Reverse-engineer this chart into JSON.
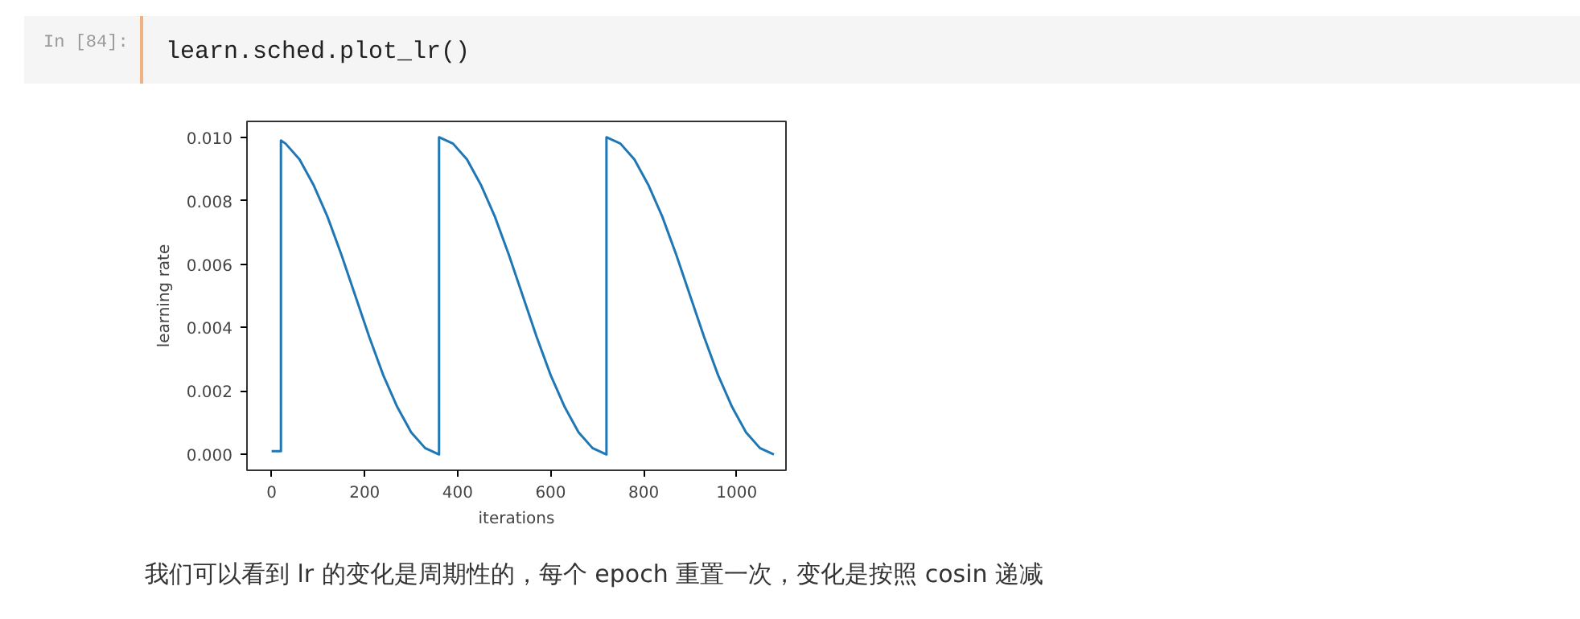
{
  "chart_data": {
    "type": "line",
    "xlabel": "iterations",
    "ylabel": "learning rate",
    "annotations": [
      "In [84]:",
      "learn.sched.plot_lr()",
      "我们可以看到 lr 的变化是周期性的，每个 epoch 重置一次，变化是按照 cosin 递减"
    ],
    "x": [
      0,
      20,
      20,
      30,
      60,
      90,
      120,
      150,
      180,
      210,
      240,
      270,
      300,
      330,
      360,
      360,
      390,
      420,
      450,
      480,
      510,
      540,
      570,
      600,
      630,
      660,
      690,
      720,
      720,
      750,
      780,
      810,
      840,
      870,
      900,
      930,
      960,
      990,
      1020,
      1050,
      1080
    ],
    "series": [
      {
        "color": "#1f77b4",
        "values": [
          0.0001,
          0.0001,
          0.0099,
          0.0098,
          0.0093,
          0.0085,
          0.0075,
          0.0063,
          0.005,
          0.0037,
          0.0025,
          0.0015,
          0.0007,
          0.0002,
          0.0,
          0.01,
          0.0098,
          0.0093,
          0.0085,
          0.0075,
          0.0063,
          0.005,
          0.0037,
          0.0025,
          0.0015,
          0.0007,
          0.0002,
          0.0,
          0.01,
          0.0098,
          0.0093,
          0.0085,
          0.0075,
          0.0063,
          0.005,
          0.0037,
          0.0025,
          0.0015,
          0.0007,
          0.0002,
          0.0
        ]
      }
    ],
    "xlim": [
      -53,
      1106
    ],
    "ylim": [
      -0.0005,
      0.0105
    ],
    "xticks": [
      0,
      200,
      400,
      600,
      800,
      1000
    ],
    "yticks": [
      {
        "value": 0,
        "label": "0.000"
      },
      {
        "value": 0.002,
        "label": "0.002"
      },
      {
        "value": 0.004,
        "label": "0.004"
      },
      {
        "value": 0.006,
        "label": "0.006"
      },
      {
        "value": 0.008,
        "label": "0.008"
      },
      {
        "value": 0.01,
        "label": "0.010"
      }
    ],
    "grid": false,
    "marker": "none",
    "line_style": "solid"
  }
}
